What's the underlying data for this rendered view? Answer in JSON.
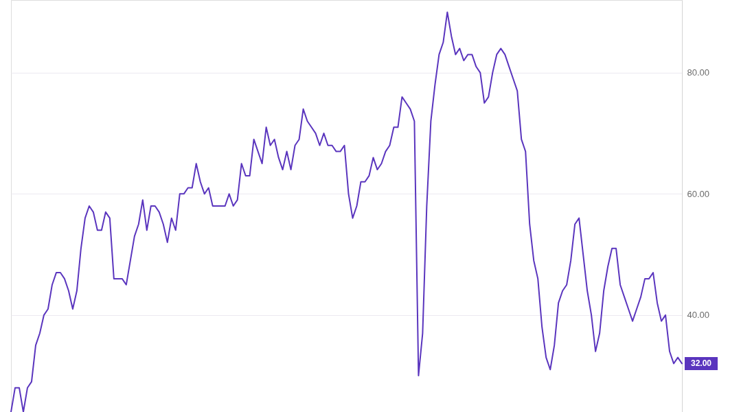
{
  "chart_data": {
    "type": "line",
    "categories": [
      null,
      null,
      null,
      null,
      null,
      null,
      null,
      null,
      null,
      null,
      null,
      null,
      null,
      null,
      null,
      null,
      null,
      null,
      null,
      null,
      null,
      null,
      null,
      null,
      null,
      null,
      null,
      null,
      null,
      null,
      null,
      null,
      null,
      null,
      null,
      null,
      null,
      null,
      null,
      null,
      null,
      null,
      null,
      null,
      null,
      null,
      null,
      null,
      null,
      null,
      null,
      null,
      null,
      null,
      null,
      null,
      null,
      null,
      null,
      null,
      null,
      null,
      null,
      null,
      null,
      null,
      null,
      null,
      null,
      null,
      null,
      null,
      null,
      null,
      null,
      null,
      null,
      null,
      null,
      null,
      null,
      null,
      null,
      null,
      null,
      null,
      null,
      null,
      null,
      null,
      null,
      null,
      null,
      null,
      null,
      null,
      null,
      null,
      null,
      null,
      null,
      null,
      null,
      null,
      null,
      null,
      null,
      null,
      null,
      null,
      null,
      null,
      null,
      null,
      null,
      null,
      null,
      null,
      null,
      null,
      null,
      null,
      null,
      null,
      null,
      null,
      null,
      null,
      null,
      null,
      null,
      null,
      null,
      null,
      null,
      null,
      null,
      null,
      null,
      null,
      null,
      null,
      null,
      null,
      null,
      null,
      null,
      null,
      null,
      null,
      null,
      null,
      null,
      null,
      null,
      null,
      null,
      null,
      null,
      null,
      null,
      null,
      null,
      null
    ],
    "series": [
      {
        "color": "#5a35be",
        "values": [
          24,
          28,
          28,
          24,
          28,
          29,
          35,
          37,
          40,
          41,
          45,
          47,
          47,
          46,
          44,
          41,
          44,
          51,
          56,
          58,
          57,
          54,
          54,
          57,
          56,
          46,
          46,
          46,
          45,
          49,
          53,
          55,
          59,
          54,
          58,
          58,
          57,
          55,
          52,
          56,
          54,
          60,
          60,
          61,
          61,
          65,
          62,
          60,
          61,
          58,
          58,
          58,
          58,
          60,
          58,
          59,
          65,
          63,
          63,
          69,
          67,
          65,
          71,
          68,
          69,
          66,
          64,
          67,
          64,
          68,
          69,
          74,
          72,
          71,
          70,
          68,
          70,
          68,
          68,
          67,
          67,
          68,
          60,
          56,
          58,
          62,
          62,
          63,
          66,
          64,
          65,
          67,
          68,
          71,
          71,
          76,
          75,
          74,
          72,
          30,
          37,
          58,
          72,
          78,
          83,
          85,
          90,
          86,
          83,
          84,
          82,
          83,
          83,
          81,
          80,
          75,
          76,
          80,
          83,
          84,
          83,
          81,
          79,
          77,
          69,
          67,
          55,
          49,
          46,
          38,
          33,
          31,
          35,
          42,
          44,
          45,
          49,
          55,
          56,
          50,
          44,
          40,
          34,
          37,
          44,
          48,
          51,
          51,
          45,
          43,
          41,
          39,
          41,
          43,
          46,
          46,
          47,
          42,
          39,
          40,
          34,
          32,
          33,
          32
        ],
        "value_labels": [
          null,
          null,
          null,
          null,
          null,
          null,
          null,
          null,
          null,
          null,
          null,
          null,
          null,
          null,
          null,
          null,
          null,
          null,
          null,
          null,
          null,
          null,
          null,
          null,
          null,
          null,
          null,
          null,
          null,
          null,
          null,
          null,
          null,
          null,
          null,
          null,
          null,
          null,
          null,
          null,
          null,
          null,
          null,
          null,
          null,
          null,
          null,
          null,
          null,
          null,
          null,
          null,
          null,
          null,
          null,
          null,
          null,
          null,
          null,
          null,
          null,
          null,
          null,
          null,
          null,
          null,
          null,
          null,
          null,
          null,
          null,
          null,
          null,
          null,
          null,
          null,
          null,
          null,
          null,
          null,
          null,
          null,
          null,
          null,
          null,
          null,
          null,
          null,
          null,
          null,
          null,
          null,
          null,
          null,
          null,
          null,
          null,
          null,
          null,
          null,
          null,
          null,
          null,
          null,
          null,
          null,
          null,
          null,
          null,
          null,
          null,
          null,
          null,
          null,
          null,
          null,
          null,
          null,
          null,
          null,
          null,
          null,
          null,
          null,
          null,
          null,
          null,
          null,
          null,
          null,
          null,
          null,
          null,
          null,
          null,
          null,
          null,
          null,
          null,
          null,
          null,
          null,
          null,
          null,
          null,
          null,
          null,
          null,
          null,
          null,
          null,
          null,
          null,
          null,
          null,
          null,
          null,
          null,
          null,
          null,
          null,
          null,
          null,
          "32.00"
        ]
      }
    ],
    "ylim": [
      24,
      92
    ],
    "yticks": [
      {
        "value": 40,
        "label": "40.00"
      },
      {
        "value": 60,
        "label": "60.00"
      },
      {
        "value": 80,
        "label": "80.00"
      }
    ],
    "grid": "y",
    "tick_labels": "y",
    "marker": "none",
    "line_style": "solid"
  }
}
